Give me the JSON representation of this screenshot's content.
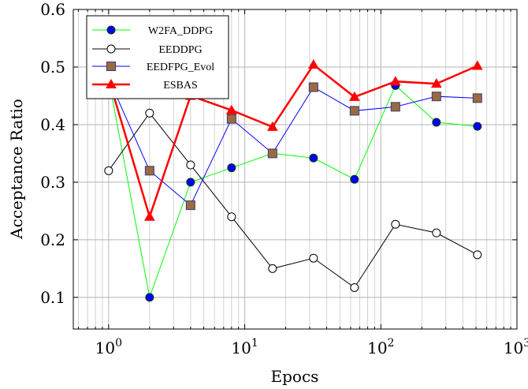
{
  "chart_data": {
    "type": "line",
    "xlabel": "Epocs",
    "ylabel": "Acceptance Ratio",
    "xscale": "log",
    "xlim": [
      0.55,
      1000
    ],
    "ylim": [
      0.045,
      0.6
    ],
    "grid": true,
    "legend_position": "top-left",
    "xticks": [
      {
        "value": 1,
        "base": "10",
        "exp": "0"
      },
      {
        "value": 10,
        "base": "10",
        "exp": "1"
      },
      {
        "value": 100,
        "base": "10",
        "exp": "2"
      },
      {
        "value": 1000,
        "base": "10",
        "exp": "3"
      }
    ],
    "yticks": [
      {
        "value": 0.1,
        "label": "0.1"
      },
      {
        "value": 0.2,
        "label": "0.2"
      },
      {
        "value": 0.3,
        "label": "0.3"
      },
      {
        "value": 0.4,
        "label": "0.4"
      },
      {
        "value": 0.5,
        "label": "0.5"
      },
      {
        "value": 0.6,
        "label": "0.6"
      }
    ],
    "series": [
      {
        "name": "W2FA_DDPG",
        "color": "#00ff00",
        "marker": "circle",
        "marker_fill": "#0000ff",
        "marker_stroke": "#0a3d0a",
        "x": [
          1,
          2,
          4,
          8,
          16,
          32,
          64,
          128,
          256,
          512
        ],
        "y": [
          0.48,
          0.1,
          0.3,
          0.325,
          0.35,
          0.342,
          0.305,
          0.468,
          0.404,
          0.397
        ]
      },
      {
        "name": "EEDDPG",
        "color": "#000000",
        "marker": "open-circle",
        "marker_fill": "#ffffff",
        "marker_stroke": "#000000",
        "x": [
          1,
          2,
          4,
          8,
          16,
          32,
          64,
          128,
          256,
          512
        ],
        "y": [
          0.32,
          0.42,
          0.33,
          0.24,
          0.15,
          0.168,
          0.117,
          0.227,
          0.212,
          0.174
        ]
      },
      {
        "name": "EEDFPG_Evol",
        "color": "#0000ff",
        "marker": "square",
        "marker_fill": "#9c6a3c",
        "marker_stroke": "#3a3a7a",
        "x": [
          1,
          2,
          4,
          8,
          16,
          32,
          64,
          128,
          256,
          512
        ],
        "y": [
          0.48,
          0.32,
          0.26,
          0.41,
          0.35,
          0.465,
          0.424,
          0.431,
          0.449,
          0.446
        ]
      },
      {
        "name": "ESBAS",
        "color": "#ff0000",
        "marker": "triangle",
        "marker_fill": "#ff0000",
        "marker_stroke": "#ff0000",
        "x": [
          1,
          2,
          4,
          8,
          16,
          32,
          64,
          128,
          256,
          512
        ],
        "y": [
          0.48,
          0.24,
          0.45,
          0.425,
          0.396,
          0.504,
          0.448,
          0.475,
          0.471,
          0.502
        ]
      }
    ]
  }
}
